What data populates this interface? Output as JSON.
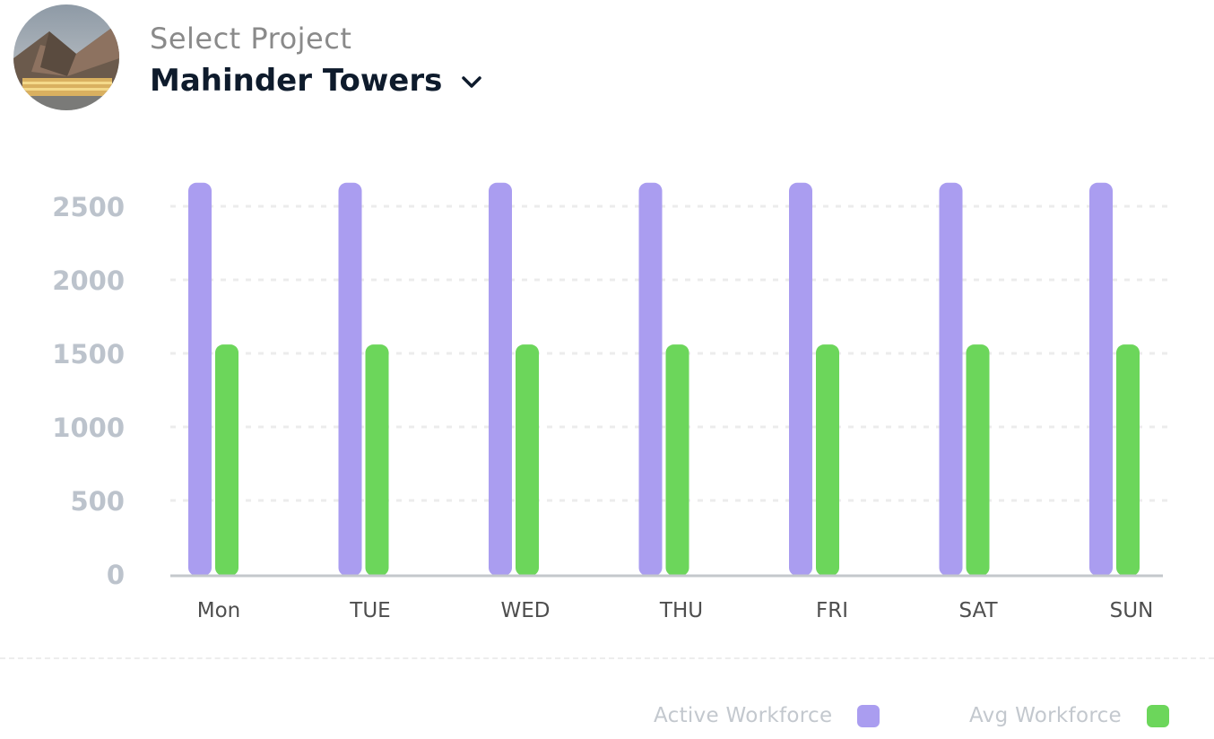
{
  "header": {
    "select_label": "Select Project",
    "project_name": "Mahinder Towers",
    "dropdown_icon": "chevron-down-icon"
  },
  "colors": {
    "active": "#aa9df0",
    "avg": "#6cd65b",
    "grid": "#ececec",
    "axis": "#c4c8cc"
  },
  "chart_data": {
    "type": "bar",
    "categories": [
      "Mon",
      "TUE",
      "WED",
      "THU",
      "FRI",
      "SAT",
      "SUN"
    ],
    "series": [
      {
        "name": "Active Workforce",
        "values": [
          2660,
          2660,
          2660,
          2660,
          2660,
          2660,
          2660
        ]
      },
      {
        "name": "Avg Workforce",
        "values": [
          1560,
          1560,
          1560,
          1560,
          1560,
          1560,
          1560
        ]
      }
    ],
    "yticks": [
      "0",
      "500",
      "1000",
      "1500",
      "2000",
      "2500"
    ],
    "ylim": [
      0,
      2500
    ],
    "grid": true,
    "legend": "bottom-right"
  }
}
